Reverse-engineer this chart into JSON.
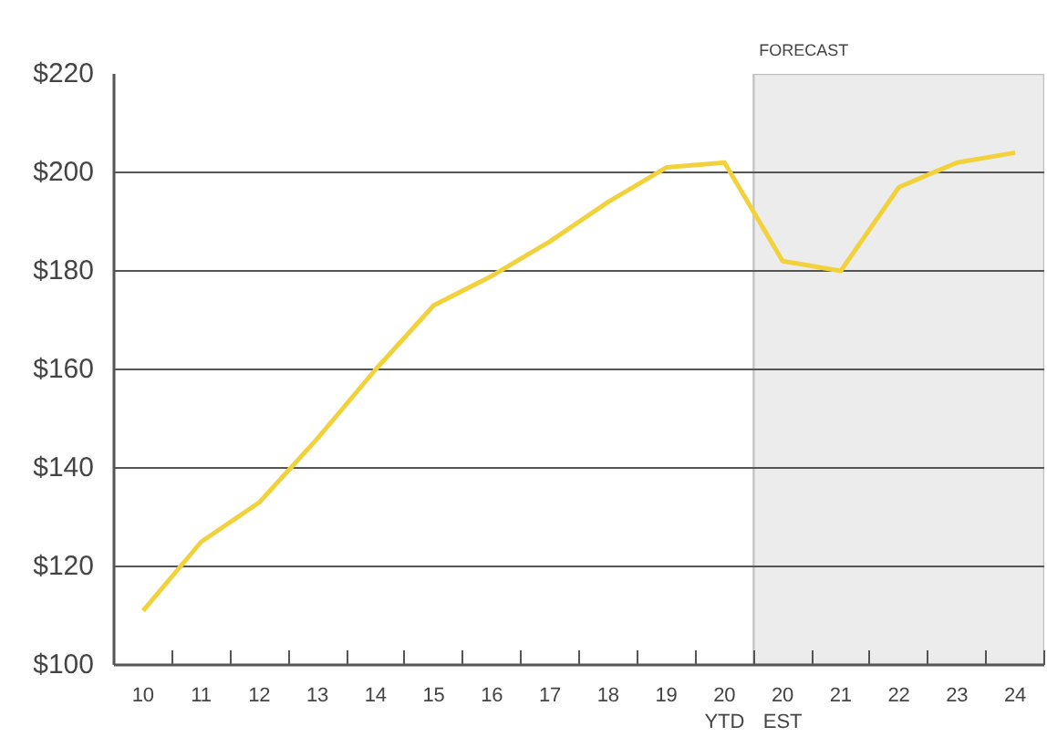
{
  "chart_data": {
    "type": "line",
    "categories": [
      "10",
      "11",
      "12",
      "13",
      "14",
      "15",
      "16",
      "17",
      "18",
      "19",
      "20\nYTD",
      "20\nEST",
      "21",
      "22",
      "23",
      "24"
    ],
    "series": [
      {
        "color": "#f2d23c",
        "values": [
          111,
          125,
          133,
          146,
          160,
          173,
          179,
          186,
          194,
          201,
          202,
          182,
          180,
          197,
          202,
          204
        ]
      }
    ],
    "ylim": [
      100,
      220
    ],
    "yticks": [
      {
        "value": 100,
        "label": "$100"
      },
      {
        "value": 120,
        "label": "$120"
      },
      {
        "value": 140,
        "label": "$140"
      },
      {
        "value": 160,
        "label": "$160"
      },
      {
        "value": 180,
        "label": "$180"
      },
      {
        "value": 200,
        "label": "$200"
      },
      {
        "value": 220,
        "label": "$220"
      }
    ],
    "bands": [
      {
        "axis": "x",
        "from": "20\nEST",
        "to": "24",
        "label": "FORECAST",
        "color": "#ececed"
      }
    ],
    "grid": "y",
    "marker": "none",
    "line_style": "solid"
  }
}
